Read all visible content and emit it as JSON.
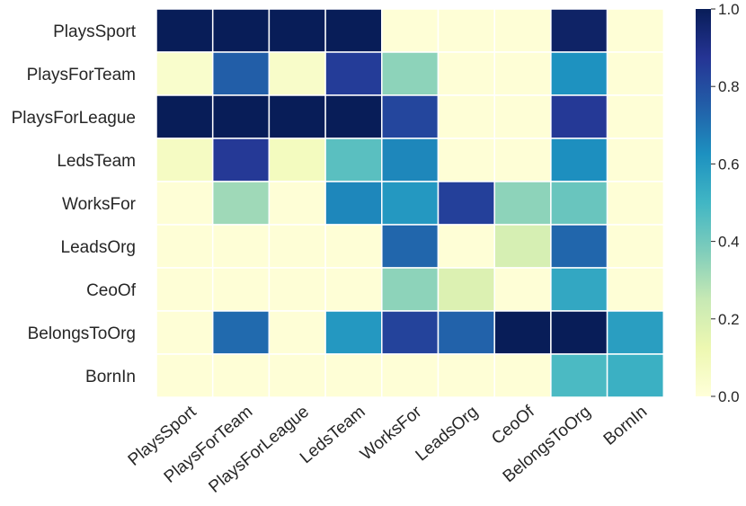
{
  "chart_data": {
    "type": "heatmap",
    "title": "",
    "xlabel": "",
    "ylabel": "",
    "rows": [
      "PlaysSport",
      "PlaysForTeam",
      "PlaysForLeague",
      "LedsTeam",
      "WorksFor",
      "LeadsOrg",
      "CeoOf",
      "BelongsToOrg",
      "BornIn"
    ],
    "columns": [
      "PlaysSport",
      "PlaysForTeam",
      "PlaysForLeague",
      "LedsTeam",
      "WorksFor",
      "LeadsOrg",
      "CeoOf",
      "BelongsToOrg",
      "BornIn"
    ],
    "values": [
      [
        1.0,
        1.0,
        1.0,
        1.0,
        0.01,
        0.01,
        0.01,
        0.97,
        0.01
      ],
      [
        0.04,
        0.75,
        0.05,
        0.85,
        0.35,
        0.01,
        0.01,
        0.62,
        0.01
      ],
      [
        1.0,
        1.0,
        1.0,
        1.0,
        0.82,
        0.01,
        0.01,
        0.86,
        0.01
      ],
      [
        0.07,
        0.86,
        0.08,
        0.45,
        0.65,
        0.01,
        0.01,
        0.63,
        0.01
      ],
      [
        0.01,
        0.32,
        0.01,
        0.65,
        0.6,
        0.84,
        0.35,
        0.42,
        0.01
      ],
      [
        0.01,
        0.01,
        0.01,
        0.01,
        0.73,
        0.01,
        0.2,
        0.73,
        0.01
      ],
      [
        0.01,
        0.01,
        0.01,
        0.01,
        0.35,
        0.18,
        0.01,
        0.55,
        0.01
      ],
      [
        0.01,
        0.72,
        0.01,
        0.6,
        0.83,
        0.74,
        1.0,
        1.0,
        0.58
      ],
      [
        0.01,
        0.01,
        0.01,
        0.01,
        0.01,
        0.01,
        0.01,
        0.48,
        0.52
      ]
    ],
    "vmin": 0.0,
    "vmax": 1.0,
    "colormap": "YlGnBu",
    "colorbar_ticks": [
      "0.0",
      "0.2",
      "0.4",
      "0.6",
      "0.8",
      "1.0"
    ],
    "colorbar_tick_values": [
      0.0,
      0.2,
      0.4,
      0.6,
      0.8,
      1.0
    ],
    "grid_line_color": "#ffffff"
  }
}
